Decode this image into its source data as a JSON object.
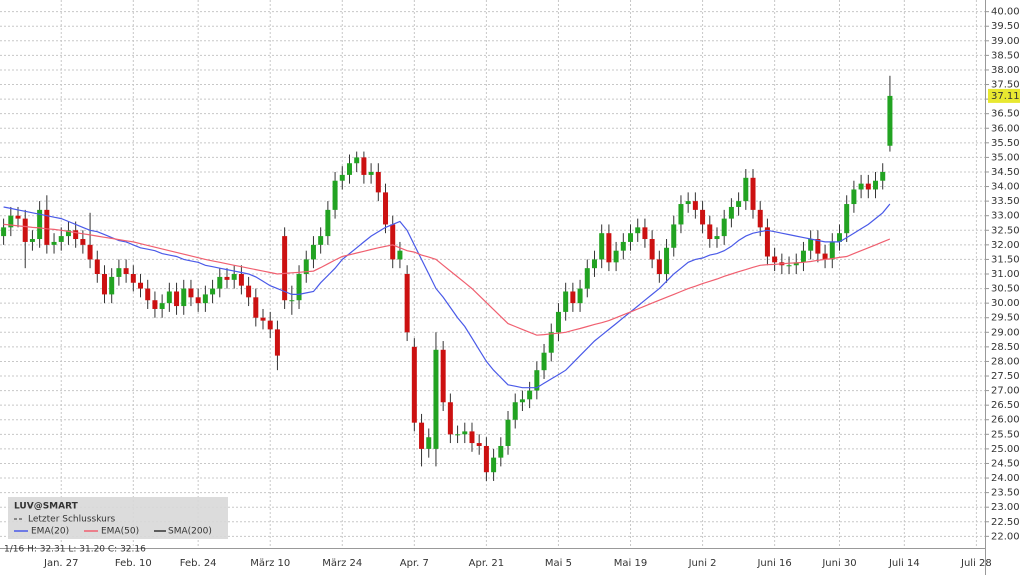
{
  "chart_data": {
    "type": "candlestick",
    "categories": [
      null,
      null,
      null,
      null,
      null,
      null,
      null,
      null,
      "Jan. 27",
      null,
      null,
      null,
      null,
      null,
      null,
      null,
      null,
      null,
      "Feb. 10",
      null,
      null,
      null,
      null,
      null,
      null,
      null,
      null,
      "Feb. 24",
      null,
      null,
      null,
      null,
      null,
      null,
      null,
      null,
      null,
      "März 10",
      null,
      null,
      null,
      null,
      null,
      null,
      null,
      null,
      null,
      "März 24",
      null,
      null,
      null,
      null,
      null,
      null,
      null,
      null,
      null,
      "Apr. 7",
      null,
      null,
      null,
      null,
      null,
      null,
      null,
      null,
      null,
      "Apr. 21",
      null,
      null,
      null,
      null,
      null,
      null,
      null,
      null,
      null,
      "Mai 5",
      null,
      null,
      null,
      null,
      null,
      null,
      null,
      null,
      null,
      "Mai 19",
      null,
      null,
      null,
      null,
      null,
      null,
      null,
      null,
      null,
      "Juni 2",
      null,
      null,
      null,
      null,
      null,
      null,
      null,
      null,
      null,
      "Juni 16",
      null,
      null,
      null,
      null,
      null,
      null,
      null,
      null,
      "Juni 30",
      null,
      null,
      null,
      null,
      null,
      null,
      null,
      null,
      "Juli 14",
      null,
      null,
      null,
      null,
      null,
      null,
      null,
      null,
      null,
      "Juli 28"
    ],
    "open": [
      32.3,
      32.6,
      33.0,
      32.9,
      32.1,
      32.2,
      33.2,
      32.0,
      32.1,
      32.3,
      32.5,
      32.2,
      32.0,
      31.5,
      31.0,
      30.3,
      30.9,
      31.2,
      31.0,
      30.7,
      30.5,
      30.1,
      29.8,
      30.0,
      30.4,
      29.9,
      30.5,
      30.2,
      30.0,
      30.3,
      30.5,
      30.9,
      30.8,
      31.0,
      30.6,
      30.2,
      29.5,
      29.4,
      29.1,
      32.3,
      30.1,
      30.1,
      31.0,
      31.5,
      32.0,
      32.3,
      33.2,
      34.2,
      34.4,
      34.8,
      35.0,
      34.4,
      34.5,
      33.8,
      32.7,
      31.5,
      31.0,
      28.5,
      25.9,
      25.0,
      25.0,
      28.4,
      26.6,
      25.5,
      25.5,
      25.6,
      25.2,
      25.1,
      24.2,
      24.7,
      25.1,
      26.0,
      26.6,
      26.7,
      27.0,
      27.7,
      28.3,
      29.0,
      29.7,
      30.4,
      30.0,
      30.5,
      31.2,
      31.5,
      32.4,
      31.4,
      31.8,
      32.1,
      32.4,
      32.6,
      32.2,
      31.5,
      31.0,
      31.9,
      32.7,
      33.4,
      33.5,
      33.2,
      32.7,
      32.2,
      32.3,
      32.9,
      33.3,
      33.5,
      34.3,
      33.2,
      32.6,
      31.6,
      31.4,
      31.3,
      31.3,
      31.4,
      31.8,
      32.2,
      31.7,
      31.5,
      32.1,
      32.4,
      33.4,
      33.9,
      34.1,
      33.9,
      34.2,
      35.4,
      null,
      null,
      null,
      null,
      null,
      null,
      null,
      null,
      null,
      null,
      null,
      null
    ],
    "high": [
      32.9,
      33.3,
      33.3,
      33.2,
      32.5,
      33.5,
      33.7,
      32.4,
      32.6,
      32.8,
      32.8,
      32.5,
      33.1,
      31.8,
      31.3,
      31.2,
      31.5,
      31.5,
      31.3,
      31.0,
      30.8,
      30.4,
      30.3,
      30.7,
      30.7,
      30.8,
      30.8,
      30.5,
      30.6,
      30.8,
      31.2,
      31.2,
      31.3,
      31.3,
      30.9,
      30.5,
      29.8,
      29.7,
      29.4,
      32.6,
      30.6,
      31.3,
      31.8,
      32.3,
      32.6,
      33.5,
      34.5,
      34.7,
      35.1,
      35.2,
      35.2,
      34.8,
      34.8,
      34.1,
      33.0,
      32.1,
      31.3,
      28.8,
      26.2,
      25.7,
      29.0,
      28.7,
      26.9,
      25.8,
      25.9,
      25.9,
      25.5,
      25.4,
      25.0,
      25.4,
      26.3,
      26.9,
      27.0,
      27.3,
      28.0,
      28.6,
      29.3,
      30.0,
      30.7,
      30.7,
      30.8,
      31.5,
      31.8,
      32.7,
      32.7,
      32.1,
      32.4,
      32.7,
      32.9,
      32.9,
      32.5,
      31.8,
      32.2,
      33.0,
      33.7,
      33.8,
      33.8,
      33.5,
      33.0,
      32.6,
      33.2,
      33.6,
      33.8,
      34.6,
      34.6,
      33.5,
      32.9,
      31.9,
      31.7,
      31.6,
      31.7,
      32.1,
      32.5,
      32.5,
      32.0,
      32.4,
      32.7,
      33.7,
      34.2,
      34.4,
      34.4,
      34.5,
      34.8,
      37.8,
      null,
      null,
      null,
      null,
      null,
      null,
      null,
      null,
      null,
      null,
      null,
      null
    ],
    "low": [
      32.0,
      32.3,
      32.6,
      31.2,
      31.8,
      31.9,
      31.7,
      31.7,
      31.8,
      32.0,
      31.9,
      31.7,
      31.2,
      30.7,
      30.0,
      30.0,
      30.6,
      30.7,
      30.4,
      30.2,
      29.8,
      29.5,
      29.5,
      29.7,
      29.6,
      29.6,
      29.9,
      29.7,
      29.7,
      30.0,
      30.2,
      30.5,
      30.5,
      30.3,
      29.9,
      29.2,
      29.1,
      28.8,
      27.7,
      29.8,
      29.6,
      29.8,
      30.7,
      31.2,
      31.7,
      32.0,
      32.9,
      33.9,
      34.1,
      34.5,
      34.1,
      34.1,
      33.5,
      32.4,
      31.2,
      31.2,
      28.7,
      25.6,
      24.4,
      24.7,
      24.4,
      26.3,
      25.2,
      25.2,
      25.2,
      24.9,
      24.8,
      23.9,
      23.9,
      24.4,
      24.8,
      25.7,
      26.3,
      26.4,
      26.7,
      27.4,
      28.0,
      28.7,
      29.4,
      29.7,
      29.7,
      30.2,
      30.9,
      31.2,
      31.1,
      31.1,
      31.5,
      31.8,
      32.1,
      31.9,
      31.2,
      30.7,
      30.7,
      31.6,
      32.4,
      33.1,
      32.9,
      32.4,
      31.9,
      31.9,
      32.0,
      32.6,
      33.0,
      33.2,
      32.9,
      32.3,
      31.3,
      31.1,
      31.0,
      31.0,
      31.0,
      31.1,
      31.5,
      31.4,
      31.2,
      31.2,
      31.8,
      32.1,
      33.1,
      33.6,
      33.6,
      33.6,
      33.9,
      35.2,
      null,
      null,
      null,
      null,
      null,
      null,
      null,
      null,
      null,
      null,
      null,
      null
    ],
    "close": [
      32.6,
      33.0,
      32.9,
      32.1,
      32.2,
      33.2,
      32.0,
      32.1,
      32.3,
      32.5,
      32.2,
      32.0,
      31.5,
      31.0,
      30.3,
      30.9,
      31.2,
      31.0,
      30.7,
      30.5,
      30.1,
      29.8,
      30.0,
      30.4,
      29.9,
      30.5,
      30.2,
      30.0,
      30.3,
      30.5,
      30.9,
      30.8,
      31.0,
      30.6,
      30.2,
      29.5,
      29.4,
      29.1,
      28.2,
      30.1,
      30.1,
      31.0,
      31.5,
      32.0,
      32.3,
      33.2,
      34.2,
      34.4,
      34.8,
      35.0,
      34.4,
      34.5,
      33.8,
      32.7,
      31.5,
      31.8,
      29.0,
      25.9,
      25.0,
      25.4,
      28.4,
      26.6,
      25.5,
      25.5,
      25.6,
      25.2,
      25.1,
      24.2,
      24.7,
      25.1,
      26.0,
      26.6,
      26.7,
      27.0,
      27.7,
      28.3,
      29.0,
      29.7,
      30.4,
      30.0,
      30.5,
      31.2,
      31.5,
      32.4,
      31.4,
      31.8,
      32.1,
      32.4,
      32.6,
      32.2,
      31.5,
      31.0,
      31.9,
      32.7,
      33.4,
      33.5,
      33.2,
      32.7,
      32.2,
      32.3,
      32.9,
      33.3,
      33.5,
      34.3,
      33.2,
      32.6,
      31.6,
      31.4,
      31.3,
      31.3,
      31.4,
      31.8,
      32.2,
      31.7,
      31.5,
      32.1,
      32.4,
      33.4,
      33.9,
      34.1,
      33.9,
      34.2,
      34.5,
      37.11,
      null,
      null,
      null,
      null,
      null,
      null,
      null,
      null,
      null,
      null,
      null,
      null
    ],
    "up_color": "#22a322",
    "down_color": "#cc1111",
    "wick_color": "#333333",
    "series": [
      {
        "name": "EMA(20)",
        "color": "#4a5ae8",
        "values": [
          33.3,
          33.25,
          33.2,
          33.15,
          33.1,
          33.05,
          33.0,
          32.95,
          32.9,
          32.8,
          32.7,
          32.6,
          32.5,
          32.45,
          32.35,
          32.25,
          32.15,
          32.1,
          32.0,
          31.9,
          31.85,
          31.8,
          31.7,
          31.65,
          31.6,
          31.5,
          31.45,
          31.4,
          31.3,
          31.25,
          31.2,
          31.15,
          31.1,
          31.05,
          31.0,
          30.9,
          30.75,
          30.6,
          30.5,
          30.4,
          30.3,
          30.3,
          30.35,
          30.4,
          30.7,
          30.95,
          31.2,
          31.5,
          31.7,
          31.9,
          32.1,
          32.3,
          32.45,
          32.6,
          32.7,
          32.8,
          32.5,
          32.0,
          31.5,
          31.0,
          30.5,
          30.2,
          29.85,
          29.5,
          29.2,
          28.8,
          28.4,
          28.0,
          27.7,
          27.45,
          27.2,
          27.15,
          27.1,
          27.1,
          27.1,
          27.25,
          27.4,
          27.55,
          27.7,
          27.95,
          28.2,
          28.45,
          28.7,
          28.9,
          29.1,
          29.3,
          29.5,
          29.7,
          29.9,
          30.1,
          30.3,
          30.5,
          30.75,
          31.0,
          31.2,
          31.4,
          31.5,
          31.55,
          31.65,
          31.7,
          31.8,
          31.95,
          32.15,
          32.3,
          32.4,
          32.45,
          32.5,
          32.45,
          32.4,
          32.35,
          32.3,
          32.25,
          32.2,
          32.15,
          32.1,
          32.1,
          32.1,
          32.25,
          32.4,
          32.55,
          32.7,
          32.9,
          33.1,
          33.4,
          null,
          null,
          null,
          null,
          null,
          null,
          null,
          null,
          null,
          null,
          null,
          null
        ]
      },
      {
        "name": "EMA(50)",
        "color": "#f06070",
        "values": [
          32.7,
          32.68,
          32.65,
          32.63,
          32.6,
          32.58,
          32.55,
          32.53,
          32.5,
          32.46,
          32.42,
          32.38,
          32.34,
          32.3,
          32.26,
          32.22,
          32.18,
          32.14,
          32.1,
          32.04,
          31.98,
          31.92,
          31.86,
          31.8,
          31.74,
          31.68,
          31.62,
          31.56,
          31.5,
          31.45,
          31.4,
          31.35,
          31.3,
          31.25,
          31.2,
          31.15,
          31.1,
          31.05,
          31.0,
          31.02,
          31.04,
          31.06,
          31.08,
          31.1,
          31.22,
          31.35,
          31.48,
          31.6,
          31.66,
          31.72,
          31.78,
          31.84,
          31.9,
          31.95,
          32.0,
          31.9,
          31.8,
          31.75,
          31.65,
          31.58,
          31.5,
          31.3,
          31.1,
          30.9,
          30.7,
          30.5,
          30.26,
          30.02,
          29.78,
          29.54,
          29.3,
          29.2,
          29.1,
          29.0,
          28.9,
          28.92,
          28.95,
          28.97,
          29.0,
          29.07,
          29.13,
          29.2,
          29.27,
          29.33,
          29.4,
          29.5,
          29.6,
          29.7,
          29.8,
          29.9,
          30.0,
          30.1,
          30.2,
          30.3,
          30.4,
          30.5,
          30.58,
          30.67,
          30.75,
          30.83,
          30.92,
          31.0,
          31.08,
          31.15,
          31.23,
          31.3,
          31.32,
          31.33,
          31.35,
          31.37,
          31.38,
          31.4,
          31.43,
          31.47,
          31.5,
          31.53,
          31.57,
          31.6,
          31.7,
          31.8,
          31.9,
          32.0,
          32.1,
          32.2,
          null,
          null,
          null,
          null,
          null,
          null,
          null,
          null,
          null,
          null,
          null,
          null
        ]
      }
    ],
    "legend_symbol": "LUV@SMART",
    "legend_close_label": "Letzter Schlusskurs",
    "legend_sma": "SMA(200)",
    "last_price_label": "37.11",
    "status_line": "1/16  H: 32.31  L: 31.20  C: 32.16",
    "ylim": [
      21.6,
      40.4
    ],
    "yticks": [
      {
        "value": 22,
        "label": "22.00"
      },
      {
        "value": 22.5,
        "label": "22.50"
      },
      {
        "value": 23,
        "label": "23.00"
      },
      {
        "value": 23.5,
        "label": "23.50"
      },
      {
        "value": 24,
        "label": "24.00"
      },
      {
        "value": 24.5,
        "label": "24.50"
      },
      {
        "value": 25,
        "label": "25.00"
      },
      {
        "value": 25.5,
        "label": "25.50"
      },
      {
        "value": 26,
        "label": "26.00"
      },
      {
        "value": 26.5,
        "label": "26.50"
      },
      {
        "value": 27,
        "label": "27.00"
      },
      {
        "value": 27.5,
        "label": "27.50"
      },
      {
        "value": 28,
        "label": "28.00"
      },
      {
        "value": 28.5,
        "label": "28.50"
      },
      {
        "value": 29,
        "label": "29.00"
      },
      {
        "value": 29.5,
        "label": "29.50"
      },
      {
        "value": 30,
        "label": "30.00"
      },
      {
        "value": 30.5,
        "label": "30.50"
      },
      {
        "value": 31,
        "label": "31.00"
      },
      {
        "value": 31.5,
        "label": "31.50"
      },
      {
        "value": 32,
        "label": "32.00"
      },
      {
        "value": 32.5,
        "label": "32.50"
      },
      {
        "value": 33,
        "label": "33.00"
      },
      {
        "value": 33.5,
        "label": "33.50"
      },
      {
        "value": 34,
        "label": "34.00"
      },
      {
        "value": 34.5,
        "label": "34.50"
      },
      {
        "value": 35,
        "label": "35.00"
      },
      {
        "value": 35.5,
        "label": "35.50"
      },
      {
        "value": 36,
        "label": "36.00"
      },
      {
        "value": 36.5,
        "label": "36.50"
      },
      {
        "value": 37,
        "label": "37.00"
      },
      {
        "value": 37.5,
        "label": "37.50"
      },
      {
        "value": 38,
        "label": "38.00"
      },
      {
        "value": 38.5,
        "label": "38.50"
      },
      {
        "value": 39,
        "label": "39.00"
      },
      {
        "value": 39.5,
        "label": "39.50"
      },
      {
        "value": 40,
        "label": "40.00"
      }
    ],
    "grid": true
  }
}
